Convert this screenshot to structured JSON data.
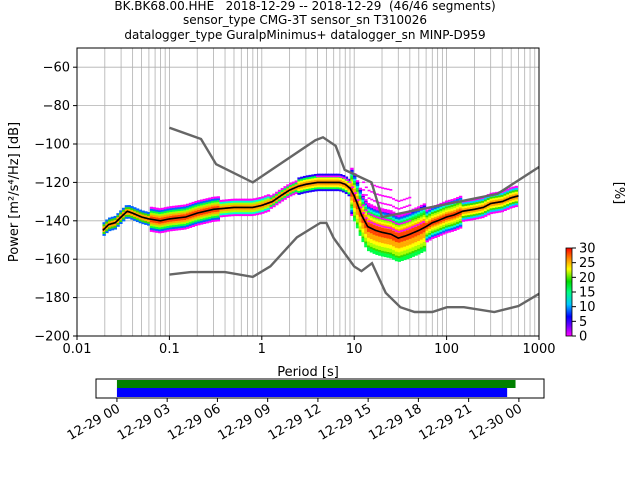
{
  "titles": [
    "BK.BK68.00.HHE   2018-12-29 -- 2018-12-29  (46/46 segments)",
    "sensor_type CMG-3T sensor_sn T310026",
    "datalogger_type GuralpMinimus+ datalogger_sn MINP-D959"
  ],
  "chart_data": [
    {
      "type": "heatmap",
      "xlabel": "Period [s]",
      "ylabel": "Power [m²/s⁴/Hz] [dB]",
      "xscale": "log",
      "xlim": [
        0.01,
        1000
      ],
      "ylim": [
        -200,
        -50
      ],
      "xticks": [
        "0.01",
        "0.1",
        "1",
        "10",
        "100",
        "1000"
      ],
      "yticks": [
        "−200",
        "−180",
        "−160",
        "−140",
        "−120",
        "−100",
        "−80",
        "−60"
      ],
      "grid": true,
      "mean_curve": {
        "x": [
          0.019,
          0.022,
          0.026,
          0.03,
          0.035,
          0.04,
          0.05,
          0.06,
          0.08,
          0.1,
          0.15,
          0.2,
          0.3,
          0.5,
          0.8,
          1.0,
          1.3,
          1.6,
          2.0,
          2.5,
          3,
          4,
          5,
          6,
          7,
          8,
          9,
          10,
          11,
          12,
          14,
          17,
          20,
          25,
          30,
          35,
          40,
          50,
          60,
          70,
          80,
          100,
          120,
          150,
          200,
          250,
          300,
          400,
          500,
          600
        ],
        "y": [
          -145,
          -142,
          -141,
          -138,
          -135,
          -136,
          -138,
          -139,
          -140,
          -139,
          -138,
          -136,
          -134,
          -133,
          -133,
          -132,
          -130,
          -127,
          -124,
          -122,
          -121,
          -120,
          -120,
          -120,
          -120,
          -121,
          -123,
          -127,
          -132,
          -137,
          -143,
          -145,
          -146,
          -147,
          -149,
          -148,
          -147,
          -145,
          -143,
          -141,
          -140,
          -138,
          -137,
          -135,
          -134,
          -133,
          -131,
          -130,
          -128,
          -127
        ]
      },
      "noise_models": [
        {
          "name": "high-noise",
          "x": [
            0.1,
            0.22,
            0.32,
            0.8,
            3.8,
            4.6,
            6.3,
            7.9,
            15.4,
            20,
            354.8,
            1000
          ],
          "y": [
            -91.5,
            -97.4,
            -110.5,
            -120.0,
            -98.0,
            -96.5,
            -101.0,
            -113.5,
            -120.0,
            -138.0,
            -126.0,
            -112.0
          ]
        },
        {
          "name": "low-noise",
          "x": [
            0.1,
            0.17,
            0.4,
            0.8,
            1.24,
            2.4,
            4.3,
            5.0,
            6.0,
            10.0,
            12.0,
            15.6,
            21.9,
            31.6,
            45,
            70,
            101,
            154,
            328,
            600,
            1000
          ],
          "y": [
            -168.0,
            -166.7,
            -166.7,
            -169.2,
            -163.7,
            -148.6,
            -141.1,
            -141.1,
            -149.0,
            -163.8,
            -166.2,
            -162.1,
            -177.5,
            -185.0,
            -187.5,
            -187.5,
            -185.0,
            -185.0,
            -187.5,
            -184.4,
            -178.0
          ]
        }
      ],
      "colorbar": {
        "label": "[%]",
        "min": 0,
        "max": 30,
        "ticks": [
          "0",
          "5",
          "10",
          "15",
          "20",
          "25",
          "30"
        ]
      }
    },
    {
      "type": "bar",
      "description_of_coverage": "data availability timeline",
      "xticks": [
        "12-29 00",
        "12-29 03",
        "12-29 06",
        "12-29 09",
        "12-29 12",
        "12-29 15",
        "12-29 18",
        "12-29 21",
        "12-30 00"
      ],
      "x_range_hours": [
        -1.25,
        25.5
      ],
      "series": [
        {
          "color": "#008000",
          "start_hour": 0.0,
          "end_hour": 23.8
        },
        {
          "color": "#0000ff",
          "start_hour": 0.0,
          "end_hour": 23.3
        }
      ]
    }
  ],
  "colors": {
    "noise_model": "#666666",
    "mean_curve": "#000000",
    "grid": "#b0b0b0"
  }
}
